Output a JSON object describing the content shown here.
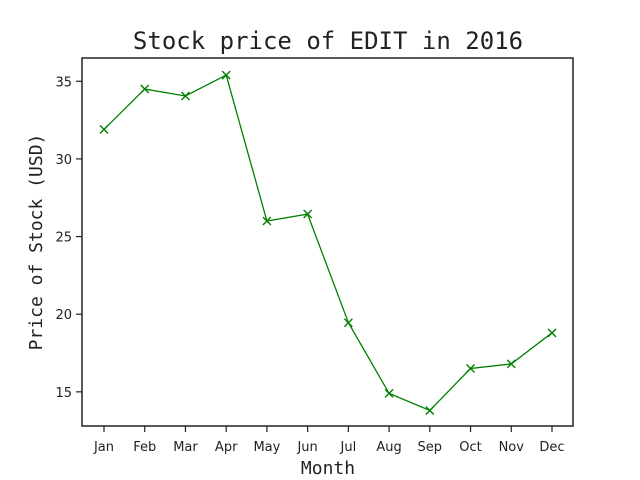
{
  "chart_data": {
    "type": "line",
    "title": "Stock price of EDIT in 2016",
    "xlabel": "Month",
    "ylabel": "Price of Stock (USD)",
    "categories": [
      "Jan",
      "Feb",
      "Mar",
      "Apr",
      "May",
      "Jun",
      "Jul",
      "Aug",
      "Sep",
      "Oct",
      "Nov",
      "Dec"
    ],
    "series": [
      {
        "values": [
          31.9,
          34.5,
          34.05,
          35.4,
          26.0,
          26.45,
          19.45,
          14.9,
          13.8,
          16.5,
          16.8,
          18.8
        ],
        "color": "#008000",
        "marker": "x"
      }
    ],
    "ylim": [
      12.8,
      36.5
    ],
    "yticks": [
      15,
      20,
      25,
      30,
      35
    ],
    "grid": false,
    "legend": "none"
  }
}
